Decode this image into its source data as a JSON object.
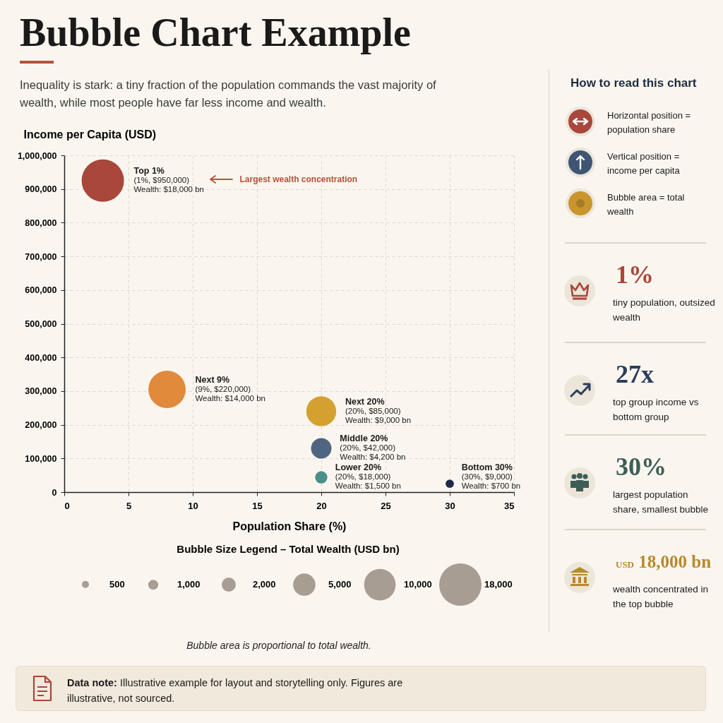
{
  "chart_data": [
    {
      "type": "bubble",
      "title": "Bubble Chart Example",
      "subtitle": "Inequality is stark: a tiny fraction of the population commands the vast majority of wealth, while most people have far less income and wealth.",
      "xlabel": "Population Share (%)",
      "ylabel": "Income per Capita (USD)",
      "legend_title": "Bubble Size Legend – Total Wealth (USD bn)",
      "xlim": [
        0,
        35
      ],
      "xticks": [
        0,
        5,
        10,
        15,
        20,
        25,
        30,
        35
      ],
      "ylim": [
        0,
        1000000
      ],
      "yticks": [
        0,
        {
          "value": 100000,
          "label": "100,000"
        },
        {
          "value": 200000,
          "label": "200,000"
        },
        {
          "value": 300000,
          "label": "300,000"
        },
        {
          "value": 400000,
          "label": "400,000"
        },
        {
          "value": 500000,
          "label": "500,000"
        },
        {
          "value": 600000,
          "label": "600,000"
        },
        {
          "value": 700000,
          "label": "700,000"
        },
        {
          "value": 800000,
          "label": "800,000"
        },
        {
          "value": 900000,
          "label": "900,000"
        },
        {
          "value": 1000000,
          "label": "1,000,000"
        }
      ],
      "grid": true,
      "size_legend": [
        500,
        {
          "value": 1000,
          "label": "1,000"
        },
        {
          "value": 2000,
          "label": "2,000"
        },
        {
          "value": 5000,
          "label": "5,000"
        },
        {
          "value": 10000,
          "label": "10,000"
        },
        {
          "value": 18000,
          "label": "18,000"
        }
      ],
      "series": [
        {
          "name": "Top 1%",
          "color": "#a8473a",
          "x": [
            3
          ],
          "values": [
            925000
          ],
          "sizes": [
            18000
          ],
          "value_labels": [
            "(1%, $950,000)"
          ]
        },
        {
          "name": "Next 9%",
          "color": "#e08a3c",
          "x": [
            8
          ],
          "values": [
            305000
          ],
          "sizes": [
            14000
          ],
          "value_labels": [
            "(9%, $220,000)"
          ]
        },
        {
          "name": "Next 20%",
          "color": "#d4a030",
          "x": [
            20
          ],
          "values": [
            240000
          ],
          "sizes": [
            9000
          ],
          "value_labels": [
            "(20%, $85,000)"
          ]
        },
        {
          "name": "Middle 20%",
          "color": "#4f6580",
          "x": [
            20
          ],
          "values": [
            130000
          ],
          "sizes": [
            4200
          ],
          "value_labels": [
            "(20%, $42,000)"
          ]
        },
        {
          "name": "Lower 20%",
          "color": "#4a8f8a",
          "x": [
            20
          ],
          "values": [
            44000
          ],
          "sizes": [
            1500
          ],
          "value_labels": [
            "(20%, $18,000)"
          ]
        },
        {
          "name": "Bottom 30%",
          "color": "#1c2a4a",
          "x": [
            30
          ],
          "values": [
            25000
          ],
          "sizes": [
            700
          ],
          "value_labels": [
            "(30%, $9,000)"
          ]
        }
      ],
      "annotations": [
        "Wealth: $18,000 bn",
        "Wealth: $14,000 bn",
        "Wealth: $9,000 bn",
        "Wealth: $4,200 bn",
        "Wealth: $1,500 bn",
        "Wealth: $700 bn",
        "Largest wealth concentration",
        "Bubble area is proportional to total wealth.",
        "Data note: Illustrative example for layout and storytelling only. Figures are illustrative, not sourced."
      ]
    },
    {
      "type": "other",
      "title": "How to read this chart",
      "annotations": [
        "Horizontal position = population share",
        "Vertical position = income per capita",
        "Bubble area = total wealth",
        "1%",
        "tiny population, outsized wealth",
        "27x",
        "top group income vs bottom group",
        "30%",
        "largest population share, smallest bubble",
        "USD 18,000 bn",
        "wealth concentrated in the top bubble"
      ]
    }
  ]
}
